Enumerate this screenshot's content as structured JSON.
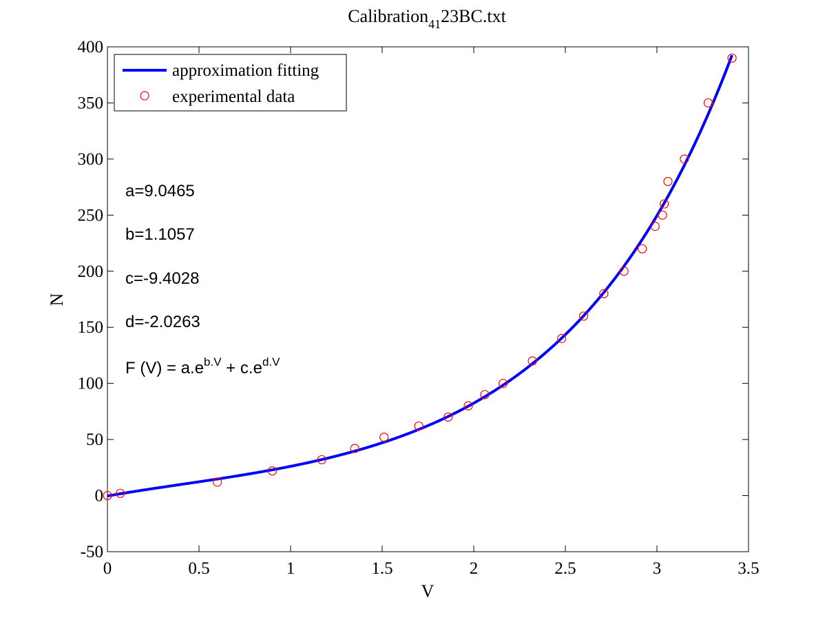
{
  "chart_data": {
    "type": "scatter",
    "title": {
      "main": "Calibration",
      "subscript": "41",
      "rest": "23BC.txt"
    },
    "xlabel": "V",
    "ylabel": "N",
    "xlim": [
      0,
      3.5
    ],
    "ylim": [
      -50,
      400
    ],
    "xticks": [
      0,
      0.5,
      1,
      1.5,
      2,
      2.5,
      3,
      3.5
    ],
    "xtick_labels": [
      "0",
      "0.5",
      "1",
      "1.5",
      "2",
      "2.5",
      "3",
      "3.5"
    ],
    "yticks": [
      -50,
      0,
      50,
      100,
      150,
      200,
      250,
      300,
      350,
      400
    ],
    "ytick_labels": [
      "-50",
      "0",
      "50",
      "100",
      "150",
      "200",
      "250",
      "300",
      "350",
      "400"
    ],
    "grid": false,
    "legend": {
      "position": "top-left",
      "entries": [
        {
          "label": "approximation fitting",
          "style": "line",
          "color": "#0000ff"
        },
        {
          "label": "experimental data",
          "style": "circle-marker",
          "color": "#ff0000"
        }
      ]
    },
    "fit": {
      "color": "#0000ff",
      "params": {
        "a": 9.0465,
        "b": 1.1057,
        "c": -9.4028,
        "d": -2.0263
      },
      "x_range": [
        0,
        3.41
      ]
    },
    "series": [
      {
        "name": "experimental data",
        "color": "#ff0000",
        "marker": "circle-open",
        "x": [
          0,
          0.07,
          0.6,
          0.9,
          1.17,
          1.35,
          1.51,
          1.7,
          1.86,
          1.97,
          2.06,
          2.16,
          2.32,
          2.48,
          2.6,
          2.71,
          2.82,
          2.92,
          2.99,
          3.03,
          3.04,
          3.06,
          3.15,
          3.28,
          3.41
        ],
        "y": [
          0,
          2,
          12,
          22,
          32,
          42,
          52,
          62,
          70,
          80,
          90,
          100,
          120,
          140,
          160,
          180,
          200,
          220,
          240,
          250,
          260,
          280,
          300,
          350,
          390
        ]
      }
    ],
    "annotations": [
      {
        "text": "a=9.0465"
      },
      {
        "text": "b=1.1057"
      },
      {
        "text": "c=-9.4028"
      },
      {
        "text": "d=-2.0263"
      },
      {
        "text": "F (V) = a.e",
        "sup1": "b.V",
        "mid": " + c.e",
        "sup2": "d.V"
      }
    ]
  }
}
